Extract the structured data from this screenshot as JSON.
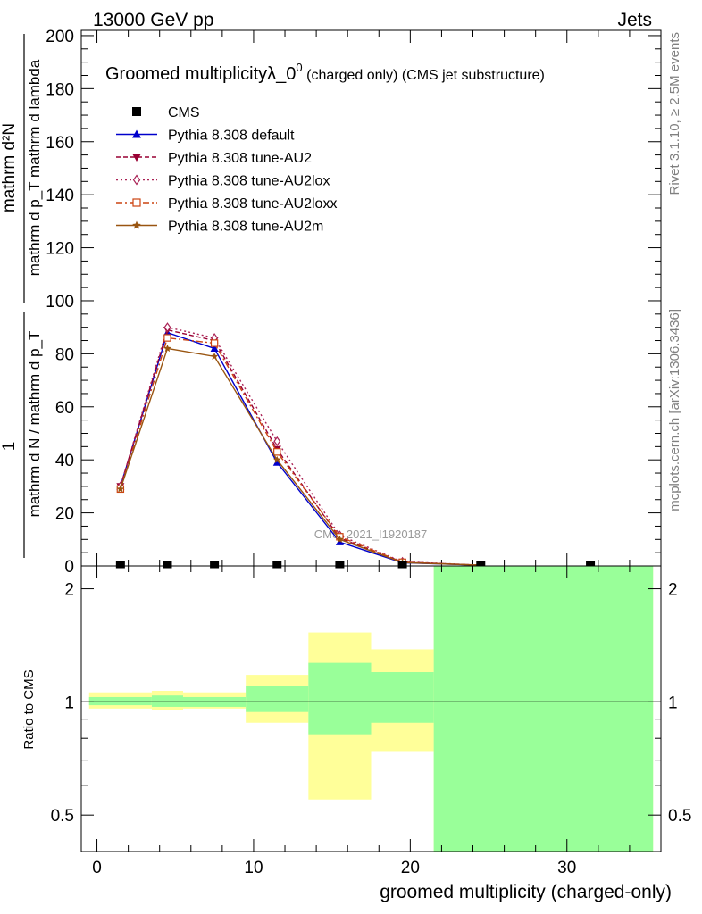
{
  "header": {
    "left_label": "13000 GeV pp",
    "right_label": "Jets",
    "side_label_top": "Rivet 3.1.10, ≥ 2.5M events",
    "side_label_bottom": "mcplots.cern.ch [arXiv:1306.3436]",
    "watermark": "CMS_2021_I1920187"
  },
  "chart_data": [
    {
      "type": "line",
      "title_main": "Groomed multiplicityλ_0",
      "title_sup": "0",
      "title_paren": "(charged only) (CMS jet substructure)",
      "ylabel_numerator": "1",
      "ylabel_denominator": "mathrm d N / mathrm d p_T",
      "ylabel_numerator2": "mathrm d²N",
      "ylabel_denominator2": "mathrm d p_T mathrm d lambda",
      "xlim": [
        -1,
        36
      ],
      "ylim": [
        0,
        202
      ],
      "yticks": [
        0,
        20,
        40,
        60,
        80,
        100,
        120,
        140,
        160,
        180,
        200
      ],
      "legend_position": "top-left",
      "data_points": {
        "name": "CMS",
        "x": [
          1.5,
          4.5,
          7.5,
          11.5,
          15.5,
          19.5,
          24.5,
          31.5
        ],
        "y": [
          0.5,
          0.5,
          0.5,
          0.5,
          0.5,
          0.5,
          0.5,
          0.5
        ],
        "color": "#000000"
      },
      "series": [
        {
          "name": "Pythia 8.308 default",
          "color": "#0000cc",
          "marker": "triangle-up",
          "dash": "solid",
          "x": [
            1.5,
            4.5,
            7.5,
            11.5,
            15.5,
            19.5,
            24.5
          ],
          "y": [
            30,
            88,
            82,
            39,
            9,
            1.2,
            0.3
          ]
        },
        {
          "name": "Pythia 8.308 tune-AU2",
          "color": "#990033",
          "marker": "triangle-down",
          "dash": "dash",
          "x": [
            1.5,
            4.5,
            7.5,
            11.5,
            15.5,
            19.5,
            24.5
          ],
          "y": [
            30,
            89,
            85,
            44,
            10.5,
            1.5,
            0.3
          ]
        },
        {
          "name": "Pythia 8.308 tune-AU2lox",
          "color": "#aa2255",
          "marker": "diamond-open",
          "dash": "dot",
          "x": [
            1.5,
            4.5,
            7.5,
            11.5,
            15.5,
            19.5,
            24.5
          ],
          "y": [
            30,
            90,
            86,
            47,
            11.5,
            1.6,
            0.3
          ]
        },
        {
          "name": "Pythia 8.308 tune-AU2loxx",
          "color": "#cc4411",
          "marker": "square-open",
          "dash": "dashdot",
          "x": [
            1.5,
            4.5,
            7.5,
            11.5,
            15.5,
            19.5,
            24.5
          ],
          "y": [
            29,
            86,
            84,
            43,
            11,
            1.4,
            0.3
          ]
        },
        {
          "name": "Pythia 8.308 tune-AU2m",
          "color": "#995511",
          "marker": "star",
          "dash": "solid",
          "x": [
            1.5,
            4.5,
            7.5,
            11.5,
            15.5,
            19.5,
            24.5
          ],
          "y": [
            29,
            82,
            79,
            40,
            10,
            1.3,
            0.3
          ]
        }
      ]
    },
    {
      "type": "area",
      "ylabel": "Ratio to CMS",
      "xlabel": "groomed multiplicity (charged-only)",
      "xlim": [
        -1,
        36
      ],
      "ylim": [
        0.4,
        2.3
      ],
      "y_scale": "log",
      "xticks": [
        0,
        10,
        20,
        30
      ],
      "yticks": [
        0.5,
        1,
        2
      ],
      "reference_line": 1,
      "bands": {
        "bins": [
          [
            -0.5,
            3.5
          ],
          [
            3.5,
            5.5
          ],
          [
            5.5,
            9.5
          ],
          [
            9.5,
            13.5
          ],
          [
            13.5,
            17.5
          ],
          [
            17.5,
            21.5
          ],
          [
            21.5,
            35.5
          ]
        ],
        "outer": [
          [
            0.96,
            1.06
          ],
          [
            0.95,
            1.07
          ],
          [
            0.96,
            1.06
          ],
          [
            0.88,
            1.18
          ],
          [
            0.55,
            1.53
          ],
          [
            0.74,
            1.38
          ],
          [
            0.36,
            2.3
          ]
        ],
        "inner": [
          [
            0.98,
            1.03
          ],
          [
            0.97,
            1.04
          ],
          [
            0.97,
            1.03
          ],
          [
            0.94,
            1.1
          ],
          [
            0.82,
            1.27
          ],
          [
            0.88,
            1.2
          ],
          [
            0.36,
            2.3
          ]
        ],
        "outer_color": "#ffff99",
        "inner_color": "#99ff99"
      }
    }
  ]
}
